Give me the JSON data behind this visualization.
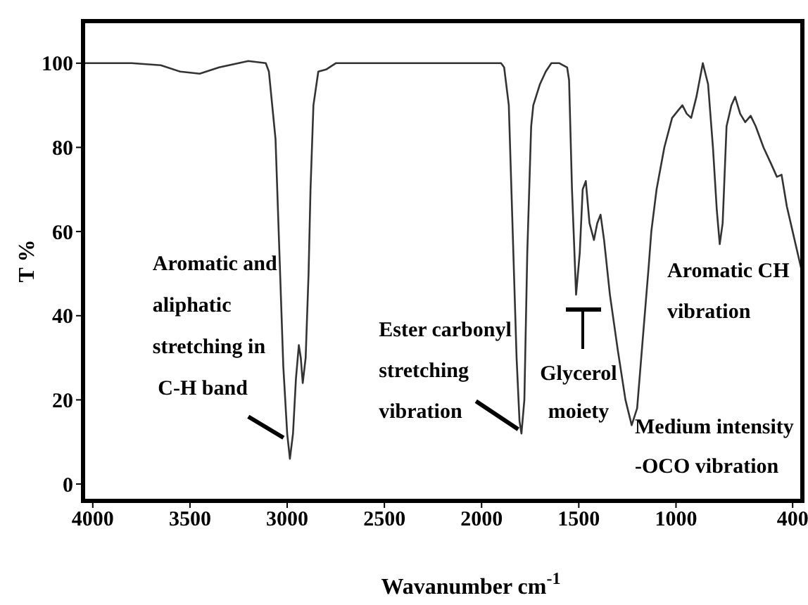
{
  "chart_data": {
    "type": "line",
    "xlabel": "Wavanumber cm$^{-1}$",
    "ylabel": "T %",
    "xlim": [
      4050,
      350
    ],
    "xticks": [
      4000,
      3500,
      3000,
      2500,
      2000,
      1500,
      1000,
      400
    ],
    "ylim": [
      -4,
      110
    ],
    "yticks": [
      0,
      20,
      40,
      60,
      80,
      100
    ],
    "grid": false,
    "marker": "none",
    "line_style": "solid",
    "series": [
      {
        "color": "#333333",
        "x": [
          4050,
          3800,
          3650,
          3550,
          3450,
          3350,
          3200,
          3110,
          3094,
          3060,
          3040,
          3020,
          3000,
          2986,
          2970,
          2955,
          2940,
          2930,
          2920,
          2905,
          2890,
          2880,
          2865,
          2840,
          2800,
          2750,
          2500,
          2200,
          2000,
          1900,
          1884,
          1860,
          1840,
          1820,
          1805,
          1795,
          1780,
          1765,
          1745,
          1734,
          1700,
          1670,
          1641,
          1600,
          1560,
          1550,
          1535,
          1514,
          1495,
          1480,
          1464,
          1445,
          1422,
          1405,
          1388,
          1370,
          1340,
          1300,
          1260,
          1228,
          1200,
          1170,
          1140,
          1127,
          1100,
          1060,
          1020,
          985,
          967,
          945,
          922,
          895,
          862,
          835,
          810,
          790,
          775,
          760,
          740,
          715,
          696,
          670,
          644,
          616,
          590,
          550,
          510,
          481,
          457,
          430,
          400,
          370,
          350
        ],
        "values": [
          100,
          100,
          99.5,
          98,
          97.5,
          99,
          100.5,
          100,
          98,
          82,
          55,
          28,
          12,
          6,
          12,
          25,
          33,
          30,
          24,
          30,
          50,
          70,
          90,
          98,
          98.5,
          100,
          100,
          100,
          100,
          100,
          99,
          90,
          60,
          30,
          15,
          12,
          20,
          55,
          85,
          90,
          95,
          98,
          100,
          100,
          99,
          96,
          70,
          45,
          55,
          70,
          72,
          62,
          58,
          62,
          64,
          58,
          45,
          32,
          20,
          14,
          18,
          35,
          52,
          60,
          70,
          80,
          87,
          89,
          90,
          88,
          87,
          92,
          100,
          95,
          80,
          65,
          57,
          62,
          85,
          90,
          92,
          88,
          86,
          87.5,
          85,
          80,
          76,
          73,
          73.5,
          66,
          60,
          54,
          50
        ]
      }
    ],
    "annotations": [
      {
        "text": "Aromatic and\naliphatic\nstretching in\n C-H band",
        "x": 2990,
        "y": 8
      },
      {
        "text": "Ester carbonyl\nstretching\nvibration",
        "x": 1790,
        "y": 12
      },
      "Glycerol\nmoiety",
      "Aromatic CH\nvibration",
      "Medium intensity\n-OCO vibration"
    ]
  }
}
